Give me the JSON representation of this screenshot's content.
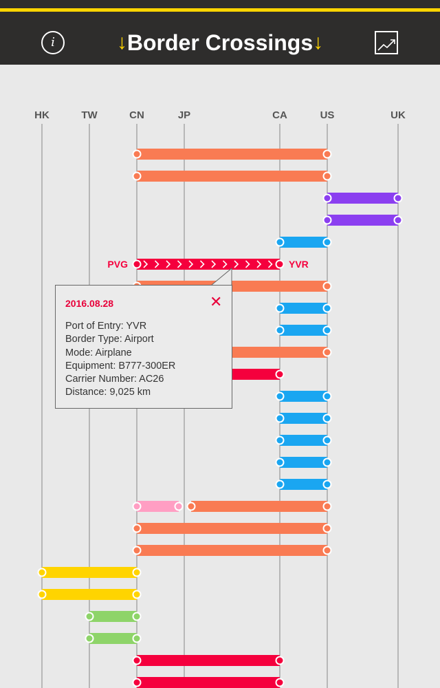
{
  "header": {
    "title": "Border Crossings",
    "left_arrow": "↓",
    "right_arrow": "↓",
    "info_icon_glyph": "i",
    "info_icon": "info-icon",
    "chart_icon": "trending-chart-icon"
  },
  "columns": [
    "HK",
    "TW",
    "CN",
    "JP",
    "CA",
    "US",
    "UK"
  ],
  "colors": {
    "orange": "#f97b53",
    "purple": "#8b3ff0",
    "blue": "#1aa6f1",
    "red": "#f5003d",
    "pink": "#ff9ec3",
    "yellow": "#ffd400",
    "green": "#8ed469",
    "header_bg": "#2e2d2c",
    "accent": "#ffd400"
  },
  "trips": [
    {
      "from": "CN",
      "to": "US",
      "color": "orange"
    },
    {
      "from": "CN",
      "to": "US",
      "color": "orange"
    },
    {
      "from": "US",
      "to": "UK",
      "color": "purple"
    },
    {
      "from": "US",
      "to": "UK",
      "color": "purple"
    },
    {
      "from": "CA",
      "to": "US",
      "color": "blue"
    },
    {
      "from": "CN",
      "to": "CA",
      "color": "red",
      "selected": true,
      "from_code": "PVG",
      "to_code": "YVR"
    },
    {
      "from": "CN",
      "to": "US",
      "color": "orange"
    },
    {
      "from": "CA",
      "to": "US",
      "color": "blue"
    },
    {
      "from": "CA",
      "to": "US",
      "color": "blue"
    },
    {
      "from": "CN",
      "to": "US",
      "color": "orange"
    },
    {
      "from": "CN",
      "to": "CA",
      "color": "red"
    },
    {
      "from": "CA",
      "to": "US",
      "color": "blue"
    },
    {
      "from": "CA",
      "to": "US",
      "color": "blue"
    },
    {
      "from": "CA",
      "to": "US",
      "color": "blue"
    },
    {
      "from": "CA",
      "to": "US",
      "color": "blue"
    },
    {
      "from": "CA",
      "to": "US",
      "color": "blue"
    },
    {
      "segments": [
        {
          "from": "CN",
          "to": "JP",
          "color": "pink"
        },
        {
          "from": "JP",
          "to": "US",
          "color": "orange"
        }
      ]
    },
    {
      "from": "CN",
      "to": "US",
      "color": "orange"
    },
    {
      "from": "CN",
      "to": "US",
      "color": "orange"
    },
    {
      "from": "HK",
      "to": "CN",
      "color": "yellow"
    },
    {
      "from": "HK",
      "to": "CN",
      "color": "yellow"
    },
    {
      "from": "TW",
      "to": "CN",
      "color": "green"
    },
    {
      "from": "TW",
      "to": "CN",
      "color": "green"
    },
    {
      "from": "CN",
      "to": "CA",
      "color": "red"
    },
    {
      "from": "CN",
      "to": "CA",
      "color": "red"
    }
  ],
  "popup": {
    "date": "2016.08.28",
    "close_glyph": "✕",
    "close_icon": "close-icon",
    "lines": [
      "Port of Entry: YVR",
      "Border Type: Airport",
      "Mode: Airplane",
      "Equipment: B777-300ER",
      "Carrier Number: AC26",
      "Distance: 9,025 km"
    ]
  }
}
